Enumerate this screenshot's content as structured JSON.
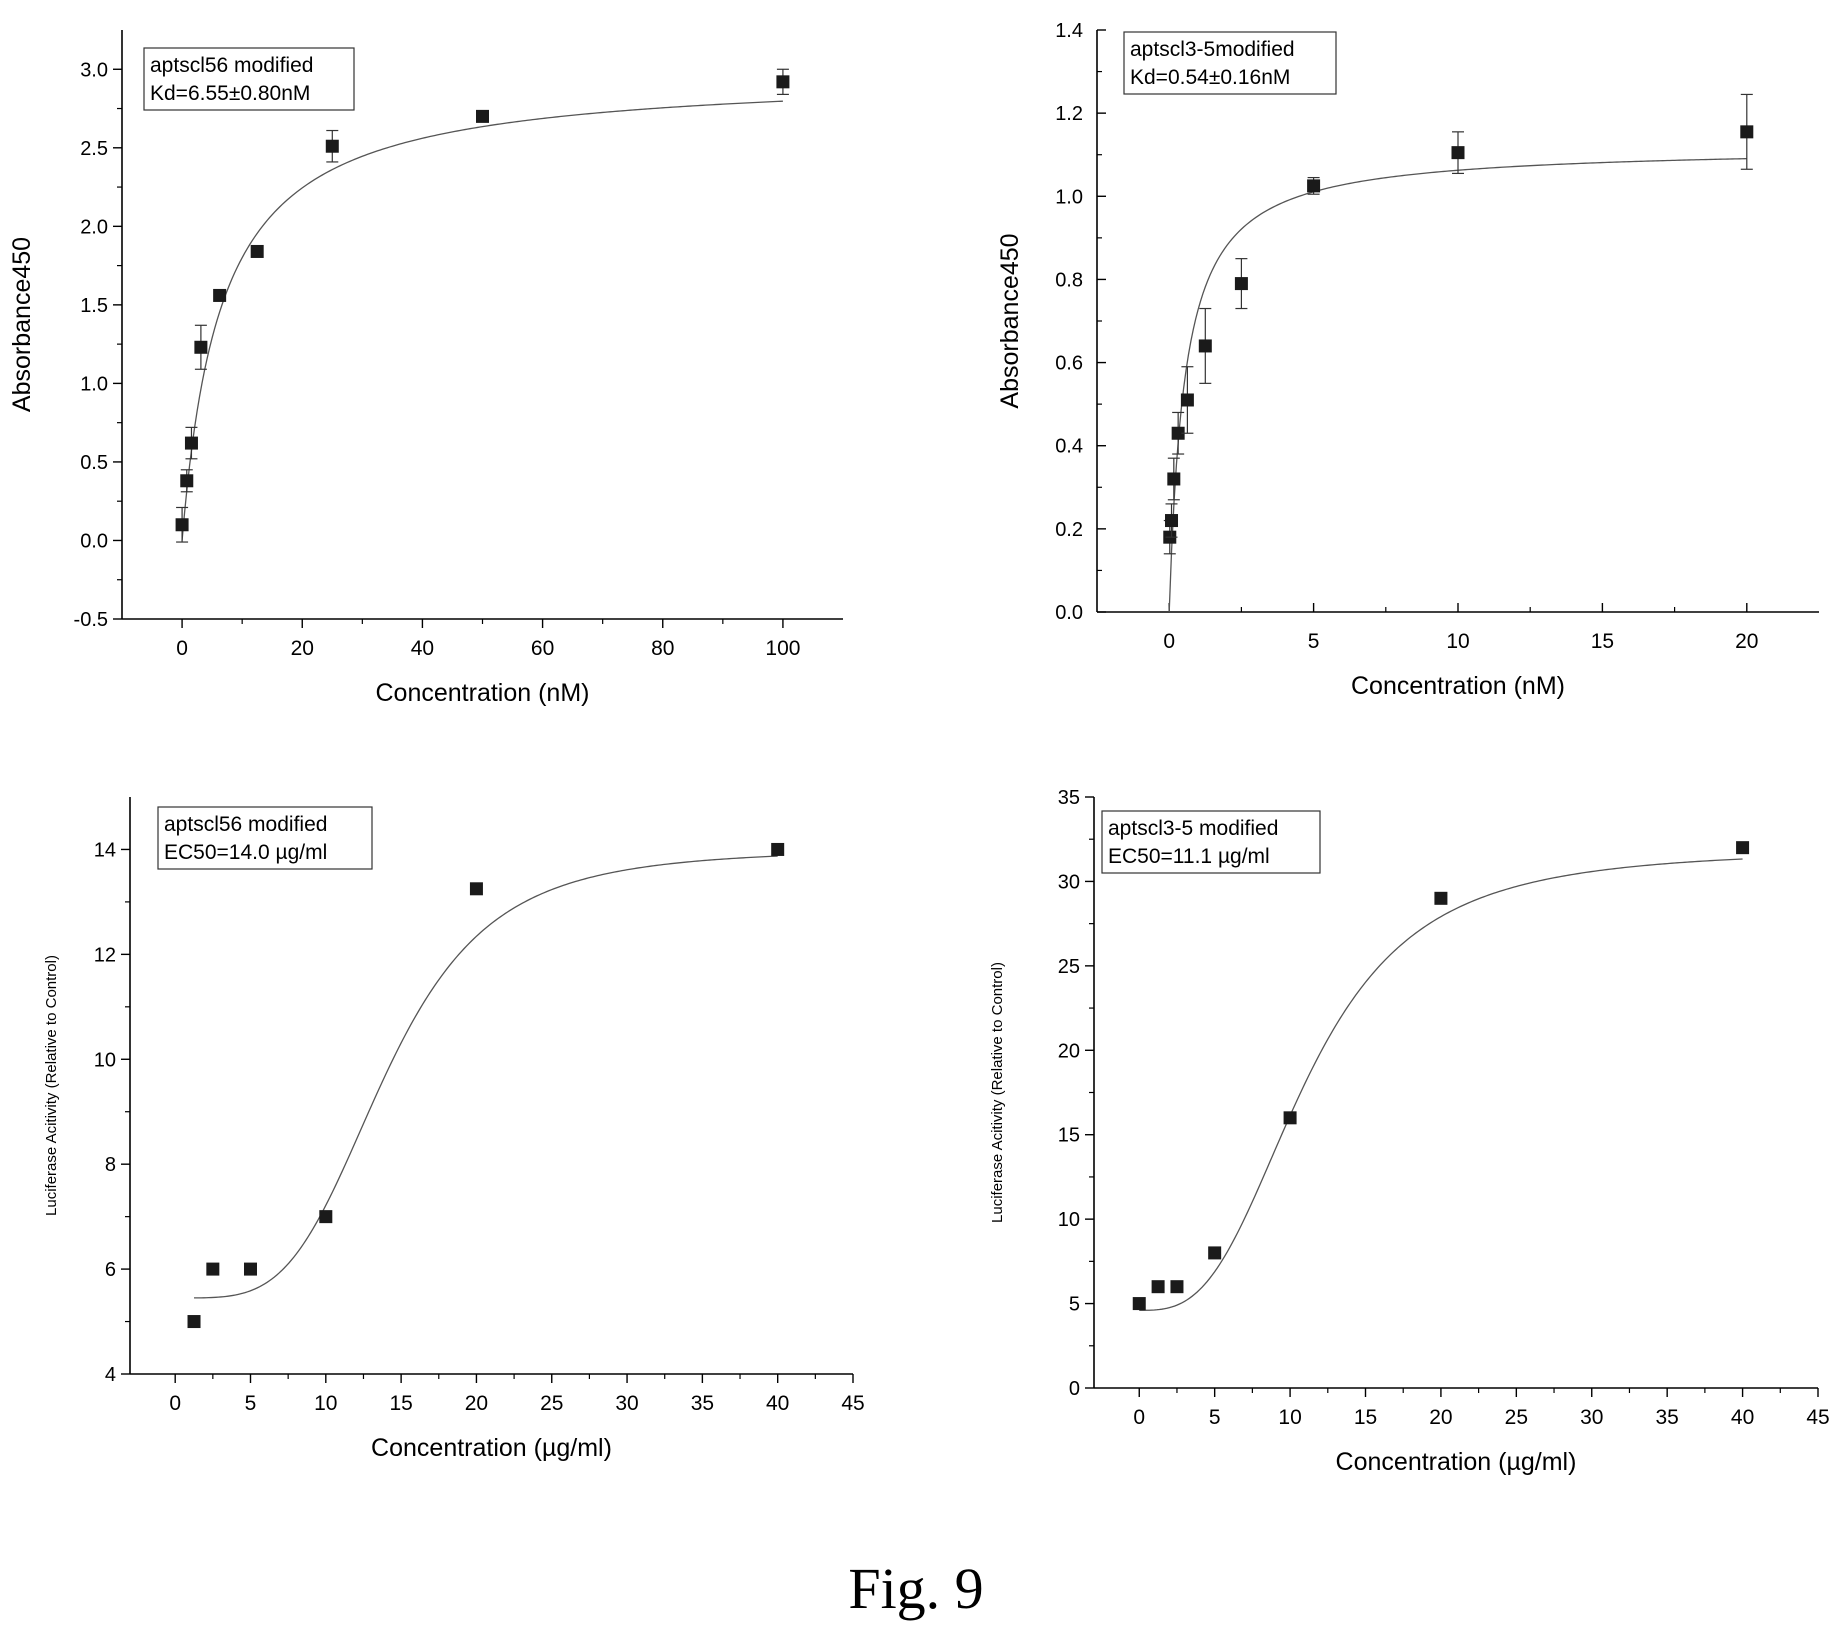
{
  "figure_caption": "Fig. 9",
  "chart_data": [
    {
      "type": "scatter",
      "xlabel": "Concentration (nM)",
      "ylabel": "Absorbance450",
      "legend_lines": [
        "aptscl56 modified",
        "Kd=6.55±0.80nM"
      ],
      "xlim": [
        -10,
        110
      ],
      "ylim": [
        -0.5,
        3.25
      ],
      "xticks": [
        0,
        20,
        40,
        60,
        80,
        100
      ],
      "yticks": [
        -0.5,
        0.0,
        0.5,
        1.0,
        1.5,
        2.0,
        2.5,
        3.0
      ],
      "ytick_decimals": 1,
      "grid": false,
      "series": [
        {
          "x": [
            0,
            0.78,
            1.56,
            3.13,
            6.25,
            12.5,
            25,
            50,
            100
          ],
          "y": [
            0.1,
            0.38,
            0.62,
            1.23,
            1.56,
            1.84,
            2.51,
            2.7,
            2.92
          ],
          "error": [
            0.11,
            0.07,
            0.1,
            0.14,
            0.03,
            0.03,
            0.1,
            0.03,
            0.08
          ]
        }
      ],
      "fit": {
        "model": "one_site_binding",
        "bmax": 2.98,
        "kd": 6.55,
        "x_from": 0,
        "x_to": 100
      }
    },
    {
      "type": "scatter",
      "xlabel": "Concentration (nM)",
      "ylabel": "Absorbance450",
      "legend_lines": [
        "aptscl3-5modified",
        "Kd=0.54±0.16nM"
      ],
      "xlim": [
        -2.5,
        22.5
      ],
      "ylim": [
        0,
        1.4
      ],
      "xticks": [
        0,
        5,
        10,
        15,
        20
      ],
      "yticks": [
        0.0,
        0.2,
        0.4,
        0.6,
        0.8,
        1.0,
        1.2,
        1.4
      ],
      "ytick_decimals": 1,
      "grid": false,
      "series": [
        {
          "x": [
            0.02,
            0.08,
            0.16,
            0.31,
            0.63,
            1.25,
            2.5,
            5,
            10,
            20
          ],
          "y": [
            0.18,
            0.22,
            0.32,
            0.43,
            0.51,
            0.64,
            0.79,
            1.025,
            1.105,
            1.155
          ],
          "error": [
            0.04,
            0.04,
            0.05,
            0.05,
            0.08,
            0.09,
            0.06,
            0.02,
            0.05,
            0.09
          ]
        }
      ],
      "fit": {
        "model": "one_site_binding",
        "bmax": 1.12,
        "kd": 0.54,
        "x_from": 0,
        "x_to": 20
      }
    },
    {
      "type": "scatter",
      "xlabel": "Concentration (µg/ml)",
      "ylabel": "Luciferase Acitivity (Relative to Control)",
      "legend_lines": [
        "aptscl56 modified",
        "EC50=14.0 µg/ml"
      ],
      "xlim": [
        -3,
        45
      ],
      "ylim": [
        4,
        15
      ],
      "xticks": [
        0,
        5,
        10,
        15,
        20,
        25,
        30,
        35,
        40,
        45
      ],
      "yticks": [
        4,
        6,
        8,
        10,
        12,
        14
      ],
      "ytick_decimals": 0,
      "grid": false,
      "series": [
        {
          "x": [
            1.25,
            2.5,
            5,
            10,
            20,
            40
          ],
          "y": [
            5,
            6,
            6,
            7,
            13.25,
            14
          ]
        }
      ],
      "fit": {
        "model": "logistic",
        "bottom": 5.45,
        "top": 14.0,
        "ec50": 14.0,
        "hill": 4,
        "x_from": 1.25,
        "x_to": 40
      }
    },
    {
      "type": "scatter",
      "xlabel": "Concentration (µg/ml)",
      "ylabel": "Luciferase Acitivity (Relative to Control)",
      "legend_lines": [
        "aptscl3-5 modified",
        "EC50=11.1 µg/ml"
      ],
      "xlim": [
        -3,
        45
      ],
      "ylim": [
        0,
        35
      ],
      "xticks": [
        0,
        5,
        10,
        15,
        20,
        25,
        30,
        35,
        40,
        45
      ],
      "yticks": [
        0,
        5,
        10,
        15,
        20,
        25,
        30,
        35
      ],
      "ytick_decimals": 0,
      "grid": false,
      "series": [
        {
          "x": [
            0,
            1.25,
            2.5,
            5,
            10,
            20,
            40
          ],
          "y": [
            5,
            6,
            6,
            8,
            16,
            29,
            32
          ]
        }
      ],
      "fit": {
        "model": "logistic",
        "bottom": 4.6,
        "top": 31.9,
        "ec50": 11.1,
        "hill": 3,
        "x_from": 0,
        "x_to": 40
      }
    }
  ]
}
